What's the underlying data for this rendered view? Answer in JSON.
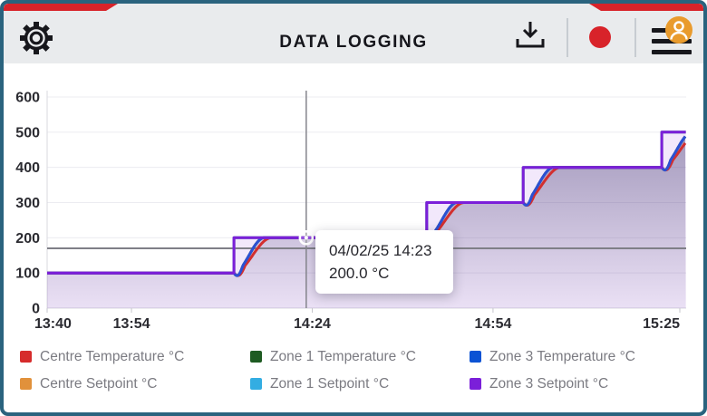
{
  "header": {
    "title": "DATA LOGGING",
    "accent_color": "#d8232a",
    "background": "#e9ebed",
    "icons": [
      "gear-icon",
      "download-icon",
      "record-icon",
      "hamburger-icon",
      "user-icon"
    ]
  },
  "tooltip": {
    "line1": "04/02/25 14:23",
    "line2": "200.0 °C"
  },
  "chart_data": {
    "type": "line",
    "title": "",
    "xlabel": "",
    "ylabel": "",
    "x_axis": {
      "tick_labels": [
        "13:40",
        "13:54",
        "14:24",
        "14:54",
        "15:25"
      ],
      "tick_minutes": [
        0,
        14,
        44,
        74,
        105
      ],
      "start_time": "13:40",
      "end_minute": 106
    },
    "y_axis": {
      "ticks": [
        0,
        100,
        200,
        300,
        400,
        500,
        600
      ],
      "min": 0,
      "max": 600
    },
    "grid": true,
    "threshold_line": {
      "value": 170,
      "color": "#7f7f87"
    },
    "crosshair": {
      "minute": 43,
      "value": 200,
      "color": "#85858c"
    },
    "setpoint_steps": [
      {
        "minute": 0,
        "value": 100
      },
      {
        "minute": 31,
        "value": 200
      },
      {
        "minute": 63,
        "value": 300
      },
      {
        "minute": 79,
        "value": 400
      },
      {
        "minute": 102,
        "value": 500
      }
    ],
    "series": [
      {
        "name": "Centre Setpoint °C",
        "color": "#e1913b",
        "role": "setpoint"
      },
      {
        "name": "Zone 1 Setpoint °C",
        "color": "#33ade2",
        "role": "setpoint"
      },
      {
        "name": "Zone 1 Temperature °C",
        "color": "#1e5b22",
        "role": "temperature",
        "response_minutes": 5.0
      },
      {
        "name": "Centre Temperature °C",
        "color": "#d22f2f",
        "role": "temperature",
        "response_minutes": 6.2
      },
      {
        "name": "Zone 3 Temperature °C",
        "color": "#2b50d4",
        "role": "temperature",
        "response_minutes": 5.0
      },
      {
        "name": "Zone 3 Setpoint °C",
        "color": "#7b1fd9",
        "role": "setpoint"
      }
    ],
    "area_fill": {
      "top": "rgba(88,78,128,0.50)",
      "bottom": "rgba(88,78,128,0.05)",
      "setpoint_fill": "rgba(123,31,217,0.10)"
    }
  },
  "legend": {
    "items": [
      {
        "label": "Centre Temperature °C",
        "color": "#d62b2b"
      },
      {
        "label": "Zone 1 Temperature °C",
        "color": "#1e5b22"
      },
      {
        "label": "Zone 3 Temperature °C",
        "color": "#0c53d4"
      },
      {
        "label": "Centre Setpoint °C",
        "color": "#e1913b"
      },
      {
        "label": "Zone 1 Setpoint °C",
        "color": "#33ade2"
      },
      {
        "label": "Zone 3 Setpoint °C",
        "color": "#7b1fd9"
      }
    ]
  }
}
